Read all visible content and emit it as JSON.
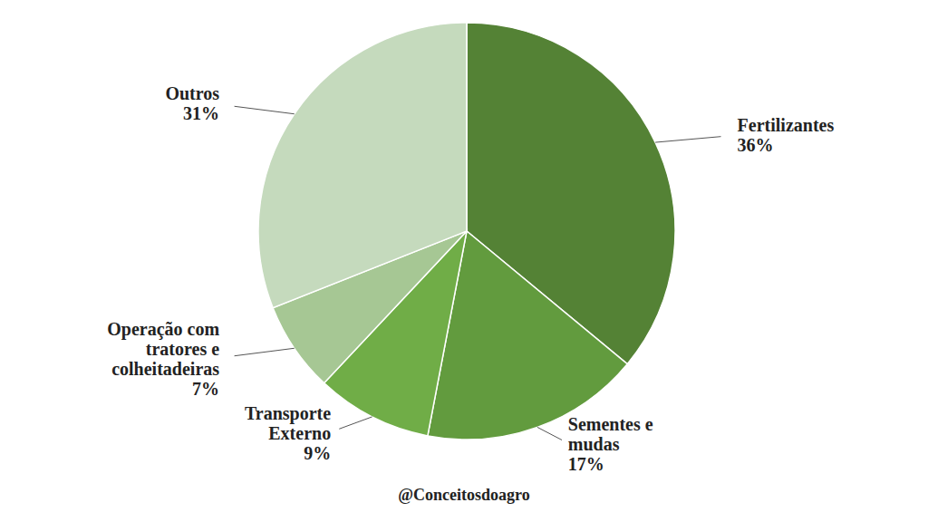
{
  "chart_data": {
    "type": "pie",
    "categories": [
      "Fertilizantes",
      "Sementes e mudas",
      "Transporte Externo",
      "Operação com tratores e colheitadeiras",
      "Outros"
    ],
    "values": [
      36,
      17,
      9,
      7,
      31
    ],
    "value_labels": [
      "36%",
      "17%",
      "9%",
      "7%",
      "31%"
    ],
    "colors": [
      "#548235",
      "#629b3e",
      "#70ad47",
      "#a6c794",
      "#c5dabd"
    ],
    "data_labels": true,
    "annotations": [
      "@Conceitosdoagro"
    ]
  }
}
